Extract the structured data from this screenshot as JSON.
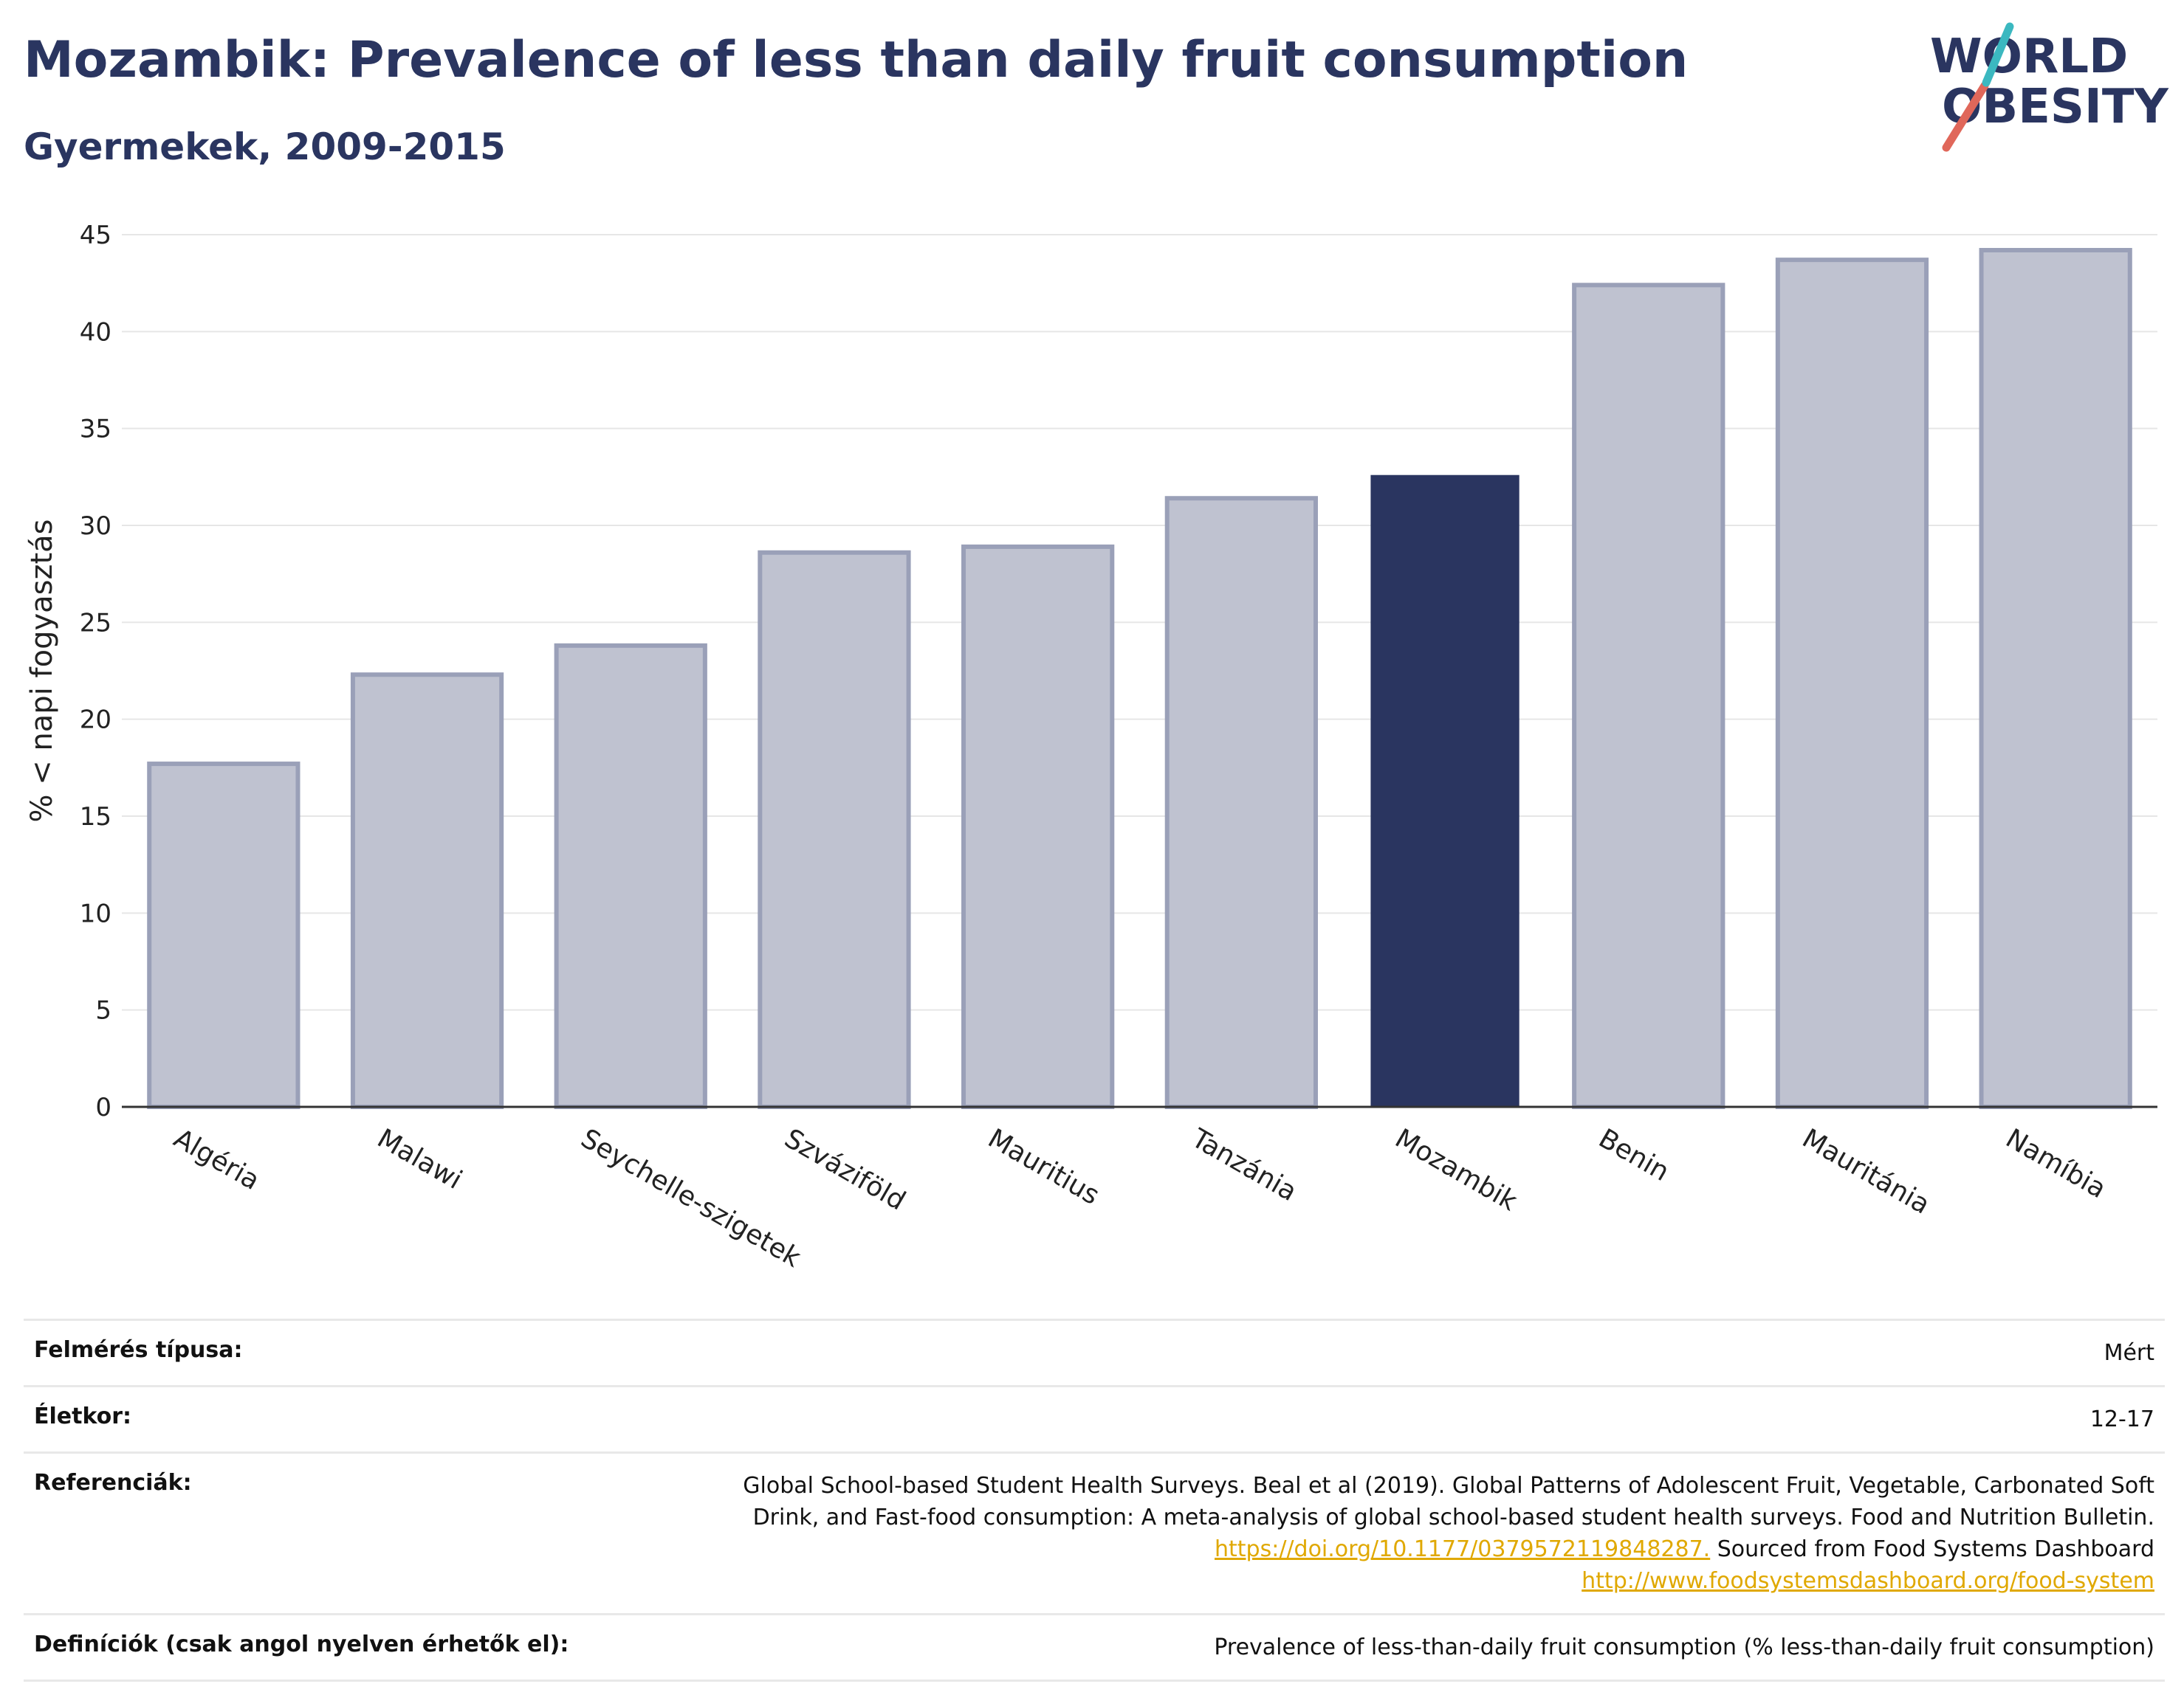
{
  "header": {
    "title": "Mozambik: Prevalence of less than daily fruit consumption",
    "subtitle": "Gyermekek, 2009-2015"
  },
  "logo": {
    "line1": "WORLD",
    "line2": "OBESITY",
    "colors": {
      "text": "#2a3560",
      "slash_red": "#e0675a",
      "slash_teal": "#3bb8c0"
    }
  },
  "chart_data": {
    "type": "bar",
    "ylabel": "% < napi fogyasztás",
    "xlabel": "",
    "ylim": [
      0,
      45
    ],
    "yticks": [
      0,
      5,
      10,
      15,
      20,
      25,
      30,
      35,
      40,
      45
    ],
    "grid": true,
    "categories": [
      "Algéria",
      "Malawi",
      "Seychelle-szigetek",
      "Szváziföld",
      "Mauritius",
      "Tanzánia",
      "Mozambik",
      "Benin",
      "Mauritánia",
      "Namíbia"
    ],
    "values": [
      17.7,
      22.3,
      23.8,
      28.6,
      28.9,
      31.4,
      32.6,
      42.4,
      43.7,
      44.2
    ],
    "highlight": "Mozambik",
    "colors": {
      "bar": "#bfc2d0",
      "bar_border": "#9aa0b8",
      "highlight": "#2a3560"
    }
  },
  "info": {
    "survey_type_label": "Felmérés típusa:",
    "survey_type_value": "Mért",
    "age_label": "Életkor:",
    "age_value": "12-17",
    "references_label": "Referenciák:",
    "references_text": "Global School-based Student Health Surveys. Beal et al (2019). Global Patterns of Adolescent Fruit, Vegetable, Carbonated Soft Drink, and Fast-food consumption: A meta-analysis of global school-based student health surveys. Food and Nutrition Bulletin.",
    "references_link1": "https://doi.org/10.1177/0379572119848287.",
    "references_mid": " Sourced from Food Systems Dashboard ",
    "references_link2": "http://www.foodsystemsdashboard.org/food-system",
    "definitions_label": "Definíciók (csak angol nyelven érhetők el):",
    "definitions_value": "Prevalence of less-than-daily fruit consumption (% less-than-daily fruit consumption)"
  }
}
